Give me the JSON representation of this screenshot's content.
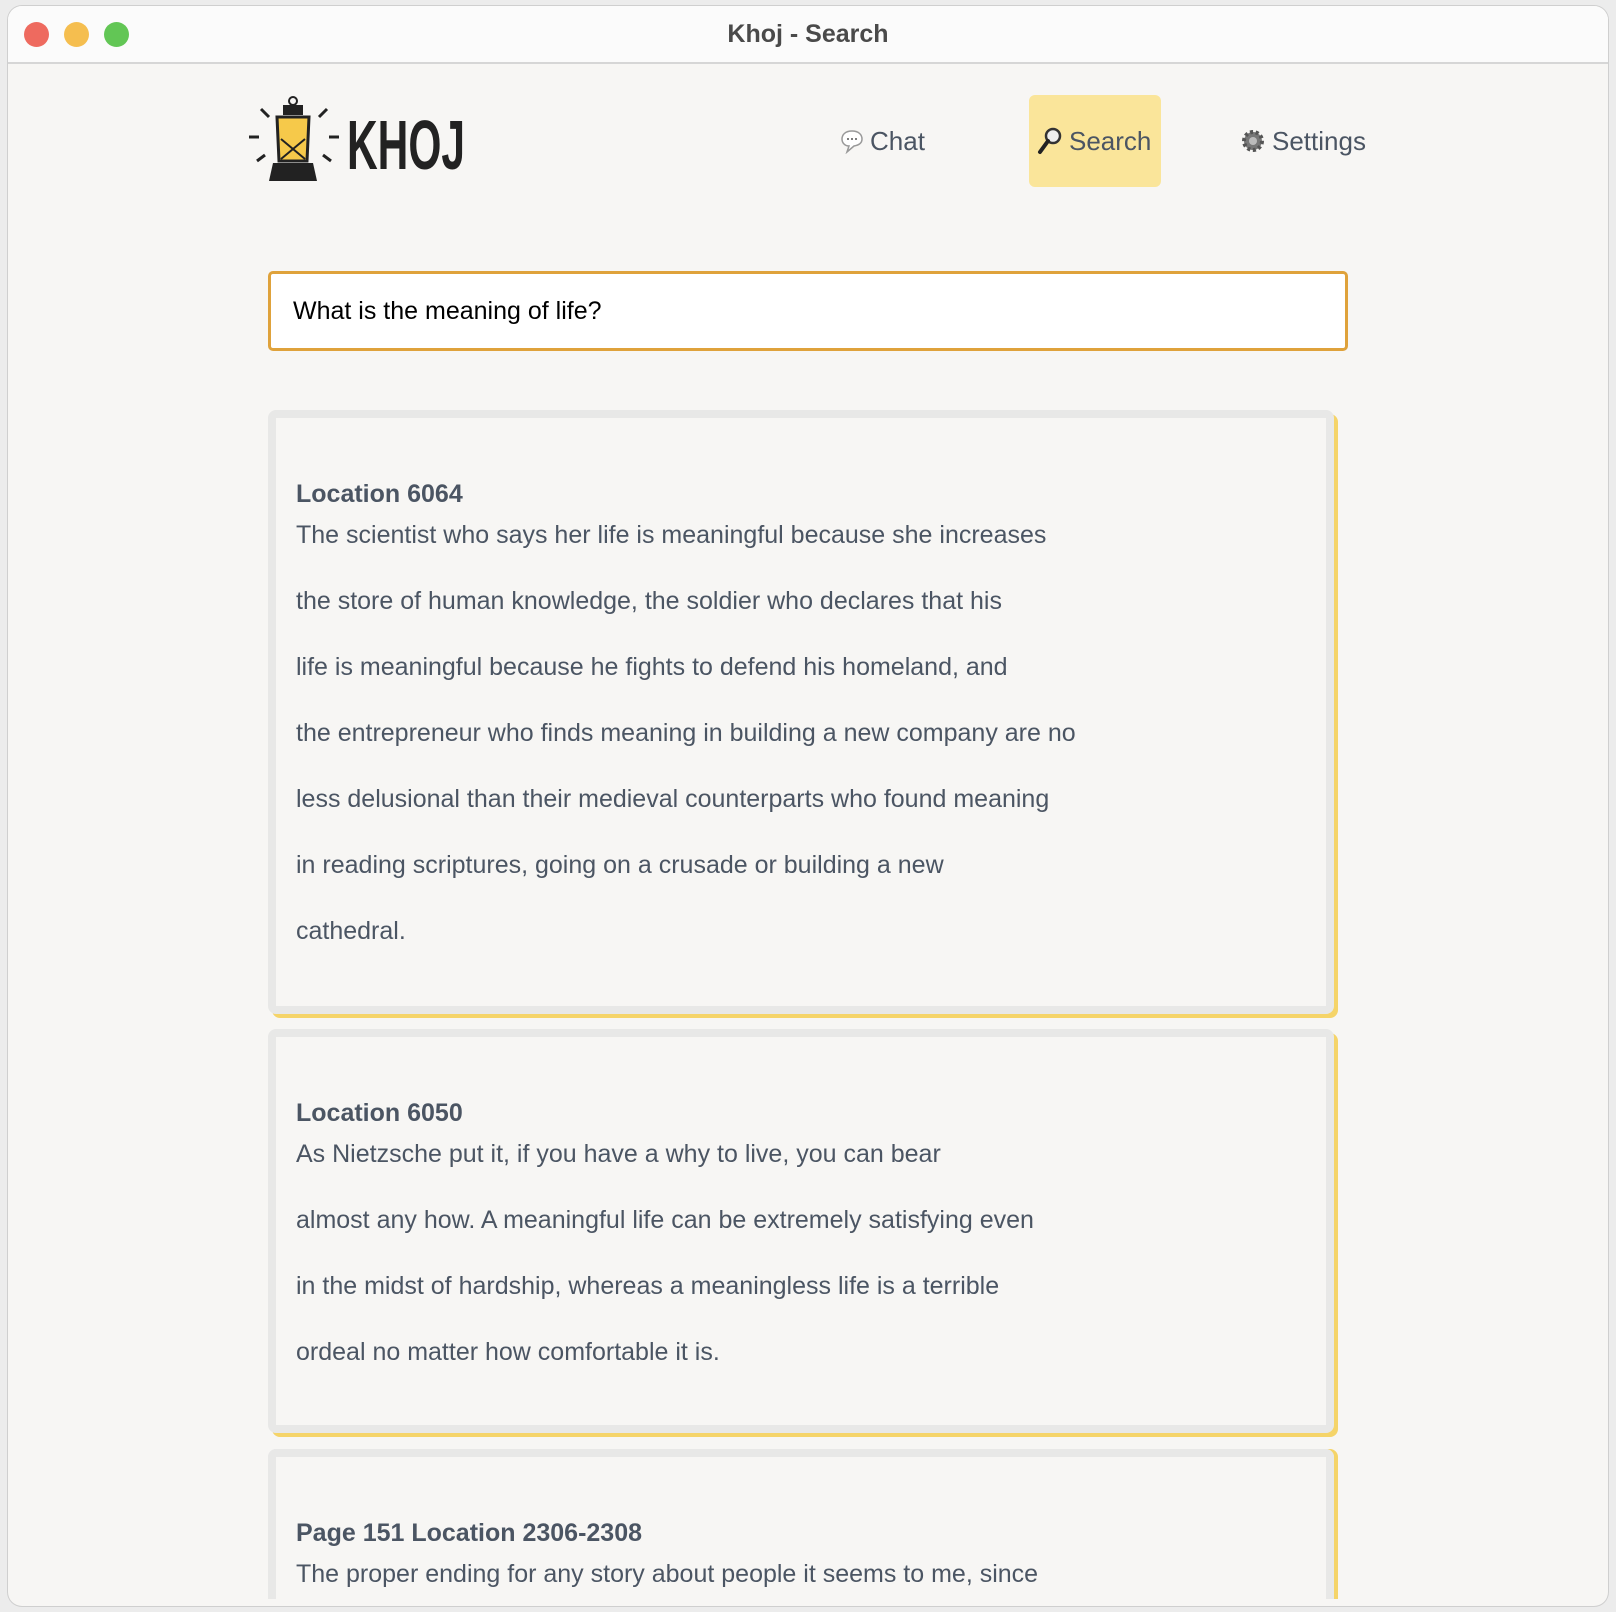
{
  "window": {
    "title": "Khoj - Search"
  },
  "colors": {
    "accent": "#fae59a",
    "input_border": "#dfa23b",
    "card_shadow": "#f5d469",
    "text": "#4b5563"
  },
  "logo": {
    "text": "KHOJ"
  },
  "nav": [
    {
      "label": "Chat",
      "icon": "chat-bubble-icon",
      "active": false
    },
    {
      "label": "Search",
      "icon": "magnifier-icon",
      "active": true
    },
    {
      "label": "Settings",
      "icon": "gear-icon",
      "active": false
    }
  ],
  "search": {
    "value": "What is the meaning of life?"
  },
  "results": [
    {
      "heading": "Location 6064",
      "lines": [
        "The scientist who says her life is meaningful because she increases",
        "the store of human knowledge, the soldier who declares that his",
        "life is meaningful because he fights to defend his homeland, and",
        "the entrepreneur who finds meaning in building a new company are no",
        "less delusional than their medieval counterparts who found meaning",
        "in reading scriptures, going on a crusade or building a new",
        "cathedral."
      ]
    },
    {
      "heading": "Location 6050",
      "lines": [
        "As Nietzsche put it, if you have a why to live, you can bear",
        "almost any how. A meaningful life can be extremely satisfying even",
        "in the midst of hardship, whereas a meaningless life is a terrible",
        "ordeal no matter how comfortable it is."
      ]
    },
    {
      "heading": "Page 151 Location 2306-2308",
      "lines": [
        "The proper ending for any story about people it seems to me, since"
      ]
    }
  ]
}
